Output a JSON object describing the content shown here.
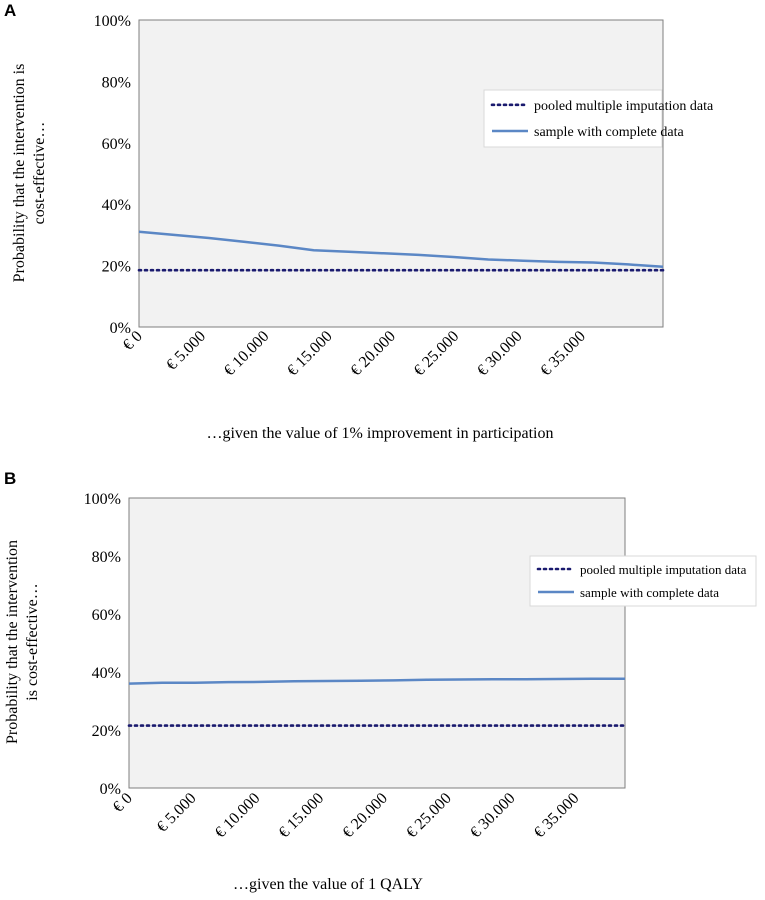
{
  "chart_data": [
    {
      "panel": "A",
      "type": "line",
      "title": "",
      "xlabel": "…given the value of 1% improvement in participation",
      "ylabel": [
        "Probability that the intervention is",
        "cost-effective…"
      ],
      "categories": [
        "€ 0",
        "€ 5.000",
        "€ 10.000",
        "€ 15.000",
        "€ 20.000",
        "€ 25.000",
        "€ 30.000",
        "€ 35.000"
      ],
      "x": [
        0,
        2500,
        5000,
        7500,
        10000,
        12500,
        15000,
        17500,
        20000,
        22500,
        25000,
        27500,
        30000,
        32500,
        35000,
        37500
      ],
      "xlim": [
        0,
        37500
      ],
      "ylim": [
        0,
        100
      ],
      "yticks": [
        "0%",
        "20%",
        "40%",
        "60%",
        "80%",
        "100%"
      ],
      "series": [
        {
          "name": "pooled multiple imputation data",
          "style": "dotted",
          "color": "#1a1a6e",
          "values": [
            18.5,
            18.5,
            18.5,
            18.5,
            18.5,
            18.5,
            18.5,
            18.5,
            18.5,
            18.5,
            18.5,
            18.5,
            18.5,
            18.5,
            18.5,
            18.5
          ]
        },
        {
          "name": "sample with complete data",
          "style": "solid",
          "color": "#5b87c5",
          "values": [
            31,
            30,
            29,
            27.8,
            26.5,
            25,
            24.5,
            24,
            23.5,
            22.8,
            22,
            21.6,
            21.2,
            21,
            20.4,
            19.6
          ]
        }
      ],
      "legend": "right"
    },
    {
      "panel": "B",
      "type": "line",
      "title": "",
      "xlabel": "…given the value of 1 QALY",
      "ylabel": [
        "Probability that the intervention",
        "is cost-effective…"
      ],
      "categories": [
        "€ 0",
        "€ 5.000",
        "€ 10.000",
        "€ 15.000",
        "€ 20.000",
        "€ 25.000",
        "€ 30.000",
        "€ 35.000"
      ],
      "x": [
        0,
        2500,
        5000,
        7500,
        10000,
        12500,
        15000,
        17500,
        20000,
        22500,
        25000,
        27500,
        30000,
        32500,
        35000,
        37500
      ],
      "xlim": [
        0,
        37500
      ],
      "ylim": [
        0,
        100
      ],
      "yticks": [
        "0%",
        "20%",
        "40%",
        "60%",
        "80%",
        "100%"
      ],
      "series": [
        {
          "name": "pooled multiple imputation data",
          "style": "dotted",
          "color": "#1a1a6e",
          "values": [
            21.5,
            21.5,
            21.5,
            21.5,
            21.5,
            21.5,
            21.5,
            21.5,
            21.5,
            21.5,
            21.5,
            21.5,
            21.5,
            21.5,
            21.5,
            21.5
          ]
        },
        {
          "name": "sample with complete data",
          "style": "solid",
          "color": "#5b87c5",
          "values": [
            36,
            36.3,
            36.3,
            36.5,
            36.6,
            36.8,
            36.9,
            37.0,
            37.1,
            37.3,
            37.4,
            37.5,
            37.5,
            37.6,
            37.7,
            37.7
          ]
        }
      ],
      "legend": "right"
    }
  ]
}
